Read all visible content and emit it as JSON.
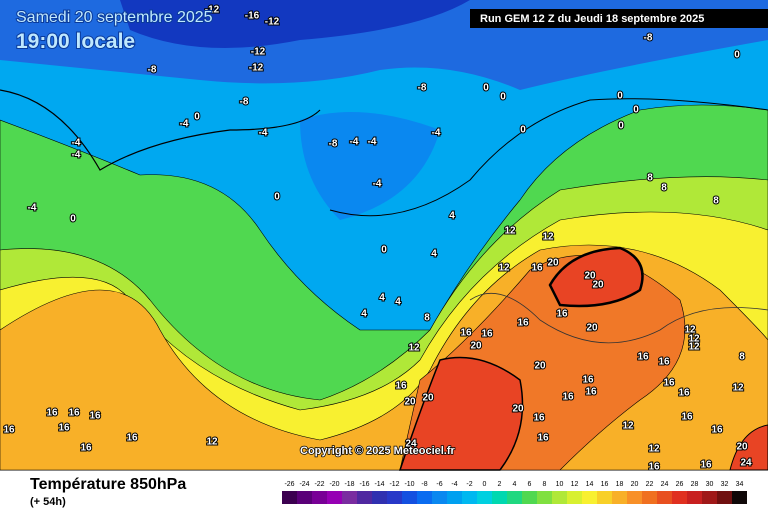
{
  "header": {
    "date": "Samedi 20 septembre 2025",
    "time": "19:00 locale",
    "run": "Run GEM 12 Z du Jeudi 18 septembre 2025"
  },
  "copyright": "Copyright © 2025 Meteociel.fr",
  "footer": {
    "title": "Température 850hPa",
    "lead": "(+ 54h)"
  },
  "legend": {
    "values": [
      -26,
      -24,
      -22,
      -20,
      -18,
      -16,
      -14,
      -12,
      -10,
      -8,
      -6,
      -4,
      -2,
      0,
      2,
      4,
      6,
      8,
      10,
      12,
      14,
      16,
      18,
      20,
      22,
      24,
      26,
      28,
      30,
      32,
      34
    ],
    "colors": [
      "#3c0050",
      "#5a0078",
      "#780096",
      "#9600b4",
      "#7a2ca0",
      "#5028a0",
      "#3030b0",
      "#2838c8",
      "#1450e0",
      "#0a6cf0",
      "#0a88f0",
      "#00a0f0",
      "#00b8f0",
      "#00d0e0",
      "#00d8b0",
      "#20d880",
      "#50d850",
      "#80e040",
      "#b0e838",
      "#d8f030",
      "#f8f030",
      "#f8d028",
      "#f8b028",
      "#f89028",
      "#f07020",
      "#e85020",
      "#e03020",
      "#c82020",
      "#a01818",
      "#701010",
      "#100808"
    ]
  },
  "map": {
    "contour_labels": [
      -12,
      -16,
      -12,
      -8,
      0,
      -12,
      -12,
      -8,
      -8,
      -8,
      0,
      0,
      0,
      0,
      0,
      0,
      -4,
      0,
      -4,
      -4,
      -8,
      -4,
      -4,
      -4,
      -4,
      -4,
      0,
      -4,
      0,
      8,
      8,
      8,
      4,
      12,
      12,
      0,
      4,
      12,
      16,
      20,
      20,
      20,
      4,
      4,
      4,
      8,
      16,
      16,
      16,
      16,
      20,
      20,
      12,
      12,
      12,
      12,
      16,
      20,
      16,
      8,
      16,
      20,
      20,
      16,
      16,
      16,
      16,
      16,
      12,
      16,
      16,
      16,
      16,
      16,
      16,
      16,
      20,
      16,
      12,
      12,
      16,
      16,
      24,
      16,
      12,
      16,
      16,
      24,
      20
    ]
  }
}
